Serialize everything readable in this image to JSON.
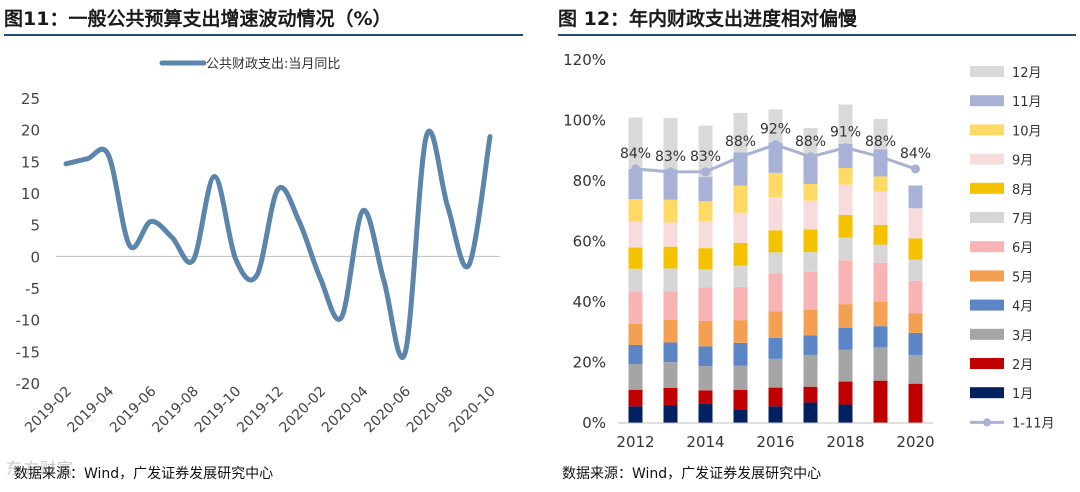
{
  "left_panel": {
    "title": "图11：一般公共预算支出增速波动情况（%）",
    "source": "数据来源：Wind，广发证券发展研究中心"
  },
  "right_panel": {
    "title": "图 12：年内财政支出进度相对偏慢",
    "source": "数据来源：Wind，广发证券发展研究中心"
  },
  "watermark": "东方财富",
  "chart_data": [
    {
      "type": "line",
      "title": "图11：一般公共预算支出增速波动情况（%）",
      "series": [
        {
          "name": "公共财政支出:当月同比",
          "color": "#5b85aa",
          "x": [
            "2019-02",
            "2019-03",
            "2019-04",
            "2019-05",
            "2019-06",
            "2019-07",
            "2019-08",
            "2019-09",
            "2019-10",
            "2019-11",
            "2019-12",
            "2020-01",
            "2020-02",
            "2020-03",
            "2020-04",
            "2020-05",
            "2020-06",
            "2020-07",
            "2020-08",
            "2020-09",
            "2020-10"
          ],
          "values": [
            14.6,
            15.4,
            16.0,
            1.7,
            5.5,
            3.0,
            -0.6,
            12.6,
            -0.4,
            -3.0,
            10.6,
            5.5,
            -3.5,
            -9.6,
            7.2,
            -3.9,
            -15.2,
            19.0,
            7.9,
            -1.4,
            18.9
          ]
        }
      ],
      "xticks": [
        "2019-02",
        "2019-04",
        "2019-06",
        "2019-08",
        "2019-10",
        "2019-12",
        "2020-02",
        "2020-04",
        "2020-06",
        "2020-08",
        "2020-10"
      ],
      "yticks": [
        25,
        20,
        15,
        10,
        5,
        0,
        -5,
        -10,
        -15,
        -20
      ],
      "ylim": [
        -20,
        25
      ],
      "xlabel": "",
      "ylabel": "",
      "legend_position": "top-center"
    },
    {
      "type": "bar",
      "stacked": true,
      "title": "图 12：年内财政支出进度相对偏慢",
      "categories": [
        "2012",
        "2013",
        "2014",
        "2015",
        "2016",
        "2017",
        "2018",
        "2019",
        "2020"
      ],
      "xticks": [
        "2012",
        "2014",
        "2016",
        "2018",
        "2020"
      ],
      "yticks": [
        "0%",
        "20%",
        "40%",
        "60%",
        "80%",
        "100%",
        "120%"
      ],
      "ylim": [
        0,
        1.2
      ],
      "series": [
        {
          "name": "1月",
          "color": "#002060",
          "values": [
            0.055,
            0.058,
            0.063,
            0.045,
            0.055,
            0.068,
            0.061,
            0.0,
            0.0
          ]
        },
        {
          "name": "2月",
          "color": "#c00000",
          "values": [
            0.055,
            0.058,
            0.045,
            0.065,
            0.062,
            0.052,
            0.076,
            0.14,
            0.13
          ]
        },
        {
          "name": "3月",
          "color": "#a5a5a5",
          "values": [
            0.085,
            0.085,
            0.08,
            0.08,
            0.095,
            0.105,
            0.105,
            0.11,
            0.095
          ]
        },
        {
          "name": "4月",
          "color": "#5b85c4",
          "values": [
            0.063,
            0.065,
            0.065,
            0.075,
            0.07,
            0.065,
            0.073,
            0.07,
            0.073
          ]
        },
        {
          "name": "5月",
          "color": "#f4a052",
          "values": [
            0.07,
            0.075,
            0.085,
            0.075,
            0.087,
            0.085,
            0.078,
            0.08,
            0.065
          ]
        },
        {
          "name": "6月",
          "color": "#f8b4b4",
          "values": [
            0.105,
            0.095,
            0.11,
            0.11,
            0.125,
            0.125,
            0.145,
            0.13,
            0.107
          ]
        },
        {
          "name": "7月",
          "color": "#d6d6d6",
          "values": [
            0.077,
            0.075,
            0.06,
            0.07,
            0.07,
            0.065,
            0.075,
            0.06,
            0.07
          ]
        },
        {
          "name": "8月",
          "color": "#f5c200",
          "values": [
            0.07,
            0.072,
            0.07,
            0.075,
            0.073,
            0.075,
            0.075,
            0.065,
            0.07
          ]
        },
        {
          "name": "9月",
          "color": "#f6dcdc",
          "values": [
            0.085,
            0.08,
            0.09,
            0.1,
            0.11,
            0.095,
            0.1,
            0.11,
            0.1
          ]
        },
        {
          "name": "10月",
          "color": "#ffd966",
          "values": [
            0.075,
            0.075,
            0.065,
            0.09,
            0.08,
            0.055,
            0.055,
            0.05,
            0.0
          ]
        },
        {
          "name": "11月",
          "color": "#a7b2d6",
          "values": [
            0.1,
            0.1,
            0.08,
            0.11,
            0.1,
            0.095,
            0.08,
            0.09,
            0.075
          ]
        },
        {
          "name": "12月",
          "color": "#d9d9d9",
          "values": [
            0.17,
            0.17,
            0.17,
            0.13,
            0.11,
            0.09,
            0.13,
            0.1,
            0.0
          ]
        }
      ],
      "line": {
        "name": "1-11月",
        "color": "#a7b2d6",
        "values": [
          0.84,
          0.83,
          0.83,
          0.88,
          0.92,
          0.88,
          0.91,
          0.88,
          0.84
        ],
        "labels": [
          "84%",
          "83%",
          "83%",
          "88%",
          "92%",
          "88%",
          "91%",
          "88%",
          "84%"
        ]
      },
      "legend_position": "right"
    }
  ]
}
